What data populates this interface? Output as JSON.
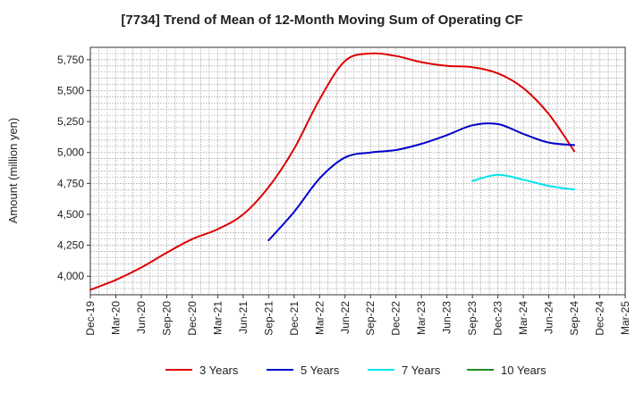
{
  "chart_data": {
    "type": "line",
    "title": "[7734]  Trend of Mean of 12-Month Moving Sum of Operating CF",
    "xlabel": "",
    "ylabel": "Amount (million yen)",
    "ylim": [
      3850,
      5850
    ],
    "yticks": [
      4000,
      4250,
      4500,
      4750,
      5000,
      5250,
      5500,
      5750
    ],
    "ytick_labels": [
      "4,000",
      "4,250",
      "4,500",
      "4,750",
      "5,000",
      "5,250",
      "5,500",
      "5,750"
    ],
    "x_start": "Dec-19",
    "x_end": "Mar-25",
    "xticks": [
      "Dec-19",
      "Mar-20",
      "Jun-20",
      "Sep-20",
      "Dec-20",
      "Mar-21",
      "Jun-21",
      "Sep-21",
      "Dec-21",
      "Mar-22",
      "Jun-22",
      "Sep-22",
      "Dec-22",
      "Mar-23",
      "Jun-23",
      "Sep-23",
      "Dec-23",
      "Mar-24",
      "Jun-24",
      "Sep-24",
      "Dec-24",
      "Mar-25"
    ],
    "grid": true,
    "legend_position": "bottom",
    "series": [
      {
        "name": "3 Years",
        "color": "#dd0000",
        "points": [
          [
            "Dec-19",
            3890
          ],
          [
            "Mar-20",
            3970
          ],
          [
            "Jun-20",
            4070
          ],
          [
            "Sep-20",
            4190
          ],
          [
            "Dec-20",
            4300
          ],
          [
            "Mar-21",
            4380
          ],
          [
            "Jun-21",
            4500
          ],
          [
            "Sep-21",
            4720
          ],
          [
            "Dec-21",
            5030
          ],
          [
            "Mar-22",
            5430
          ],
          [
            "Jun-22",
            5740
          ],
          [
            "Sep-22",
            5800
          ],
          [
            "Dec-22",
            5780
          ],
          [
            "Mar-23",
            5730
          ],
          [
            "Jun-23",
            5700
          ],
          [
            "Sep-23",
            5690
          ],
          [
            "Dec-23",
            5640
          ],
          [
            "Mar-24",
            5520
          ],
          [
            "Jun-24",
            5310
          ],
          [
            "Sep-24",
            5010
          ]
        ]
      },
      {
        "name": "5 Years",
        "color": "#0000cc",
        "points": [
          [
            "Sep-21",
            4290
          ],
          [
            "Dec-21",
            4520
          ],
          [
            "Mar-22",
            4790
          ],
          [
            "Jun-22",
            4960
          ],
          [
            "Sep-22",
            5000
          ],
          [
            "Dec-22",
            5020
          ],
          [
            "Mar-23",
            5070
          ],
          [
            "Jun-23",
            5140
          ],
          [
            "Sep-23",
            5220
          ],
          [
            "Dec-23",
            5230
          ],
          [
            "Mar-24",
            5150
          ],
          [
            "Jun-24",
            5080
          ],
          [
            "Sep-24",
            5060
          ]
        ]
      },
      {
        "name": "7 Years",
        "color": "#00e5ee",
        "points": [
          [
            "Sep-23",
            4770
          ],
          [
            "Dec-23",
            4820
          ],
          [
            "Mar-24",
            4780
          ],
          [
            "Jun-24",
            4730
          ],
          [
            "Sep-24",
            4700
          ]
        ]
      },
      {
        "name": "10 Years",
        "color": "#228b22",
        "points": []
      }
    ]
  }
}
